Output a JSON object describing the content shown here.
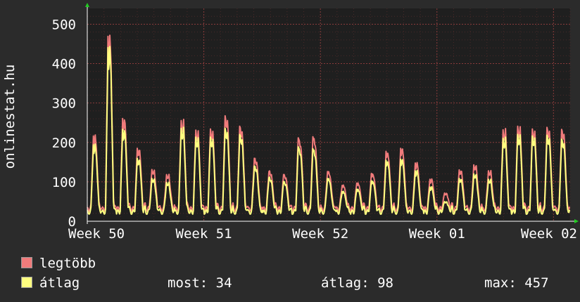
{
  "chart_data": {
    "type": "line",
    "ylabel": "onlinestat.hu",
    "ylim": [
      0,
      540
    ],
    "y_ticks": [
      0,
      100,
      200,
      300,
      400,
      500
    ],
    "x_tick_labels": [
      "Week 50",
      "Week 51",
      "Week 52",
      "Week 01",
      "Week 02"
    ],
    "x_range_days": [
      0,
      29
    ],
    "grid": true,
    "legend_placement": "bottom-left",
    "series": [
      {
        "name": "legtöbb",
        "color": "#f07b7b",
        "daily_peaks": [
          220,
          478,
          265,
          188,
          133,
          120,
          260,
          235,
          238,
          272,
          245,
          162,
          128,
          120,
          215,
          218,
          128,
          92,
          98,
          123,
          180,
          188,
          150,
          108,
          72,
          132,
          145,
          130,
          236,
          245,
          238,
          242,
          237
        ]
      },
      {
        "name": "átlag",
        "color": "#ffff80",
        "daily_peaks": [
          205,
          457,
          245,
          170,
          118,
          108,
          248,
          225,
          225,
          248,
          232,
          150,
          120,
          110,
          200,
          195,
          118,
          84,
          90,
          112,
          165,
          168,
          138,
          96,
          58,
          118,
          130,
          116,
          222,
          232,
          228,
          230,
          220
        ]
      }
    ]
  },
  "legend": [
    {
      "label": "legtöbb",
      "color": "#f07b7b"
    },
    {
      "label": "átlag",
      "color": "#ffff80"
    }
  ],
  "stats": {
    "now": "most: 34",
    "avg": "átlag: 98",
    "max": "max: 457"
  }
}
